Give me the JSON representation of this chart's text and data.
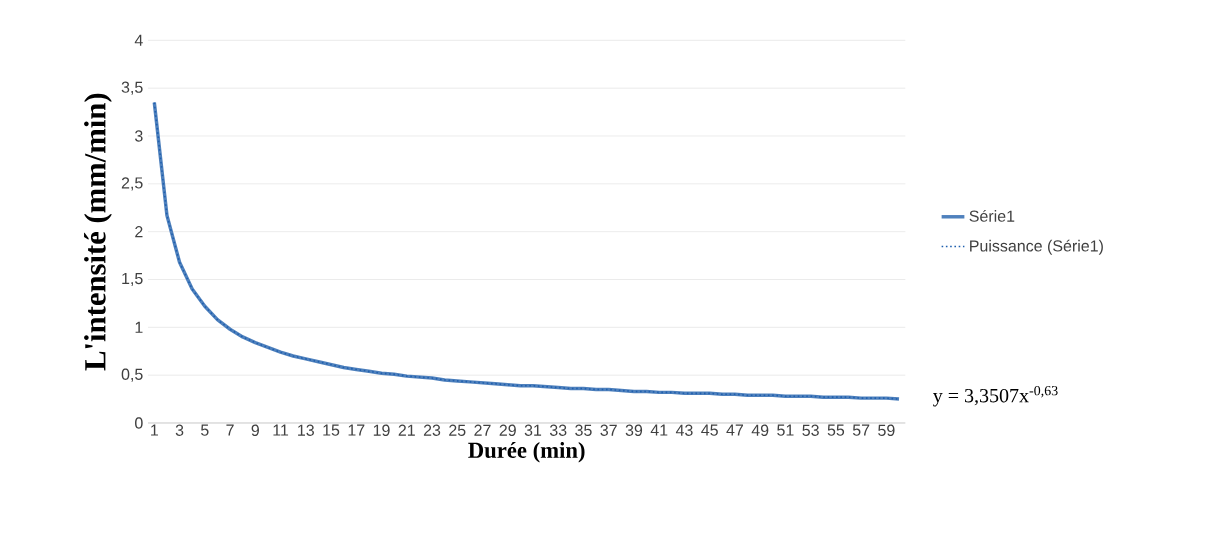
{
  "chart_data": {
    "type": "line",
    "xlabel": "Durée (min)",
    "ylabel": "L'intensité (mm/min)",
    "categories": [
      "1",
      null,
      "3",
      null,
      "5",
      null,
      "7",
      null,
      "9",
      null,
      "11",
      null,
      "13",
      null,
      "15",
      null,
      "17",
      null,
      "19",
      null,
      "21",
      null,
      "23",
      null,
      "25",
      null,
      "27",
      null,
      "29",
      null,
      "31",
      null,
      "33",
      null,
      "35",
      null,
      "37",
      null,
      "39",
      null,
      "41",
      null,
      "43",
      null,
      "45",
      null,
      "47",
      null,
      "49",
      null,
      "51",
      null,
      "53",
      null,
      "55",
      null,
      "57",
      null,
      "59",
      null
    ],
    "series": [
      {
        "name": "Série1",
        "color": "#4f81bd",
        "line_style": "solid",
        "values": [
          3.35,
          2.17,
          1.68,
          1.4,
          1.22,
          1.08,
          0.98,
          0.9,
          0.84,
          0.79,
          0.74,
          0.7,
          0.67,
          0.64,
          0.61,
          0.58,
          0.56,
          0.54,
          0.52,
          0.51,
          0.49,
          0.48,
          0.47,
          0.45,
          0.44,
          0.43,
          0.42,
          0.41,
          0.4,
          0.39,
          0.39,
          0.38,
          0.37,
          0.36,
          0.36,
          0.35,
          0.35,
          0.34,
          0.33,
          0.33,
          0.32,
          0.32,
          0.31,
          0.31,
          0.31,
          0.3,
          0.3,
          0.29,
          0.29,
          0.29,
          0.28,
          0.28,
          0.28,
          0.27,
          0.27,
          0.27,
          0.26,
          0.26,
          0.26,
          0.25
        ]
      },
      {
        "name": "Puissance (Série1)",
        "type": "line",
        "color": "#1f5fae",
        "line_style": "dotted",
        "values": [
          3.35,
          2.17,
          1.68,
          1.4,
          1.22,
          1.08,
          0.98,
          0.9,
          0.84,
          0.79,
          0.74,
          0.7,
          0.67,
          0.64,
          0.61,
          0.58,
          0.56,
          0.54,
          0.52,
          0.51,
          0.49,
          0.48,
          0.47,
          0.45,
          0.44,
          0.43,
          0.42,
          0.41,
          0.4,
          0.39,
          0.39,
          0.38,
          0.37,
          0.36,
          0.36,
          0.35,
          0.35,
          0.34,
          0.33,
          0.33,
          0.32,
          0.32,
          0.31,
          0.31,
          0.31,
          0.3,
          0.3,
          0.29,
          0.29,
          0.29,
          0.28,
          0.28,
          0.28,
          0.27,
          0.27,
          0.27,
          0.26,
          0.26,
          0.26,
          0.25
        ]
      }
    ],
    "ylim": [
      0,
      4
    ],
    "yticks": [
      0,
      {
        "value": 0.5,
        "label": "0,5"
      },
      1,
      {
        "value": 1.5,
        "label": "1,5"
      },
      2,
      {
        "value": 2.5,
        "label": "2,5"
      },
      3,
      {
        "value": 3.5,
        "label": "3,5"
      },
      4
    ],
    "grid": "y",
    "legend": "right",
    "marker": "none",
    "annotations": [
      "y = 3,3507x$^{-0,63}$"
    ]
  }
}
